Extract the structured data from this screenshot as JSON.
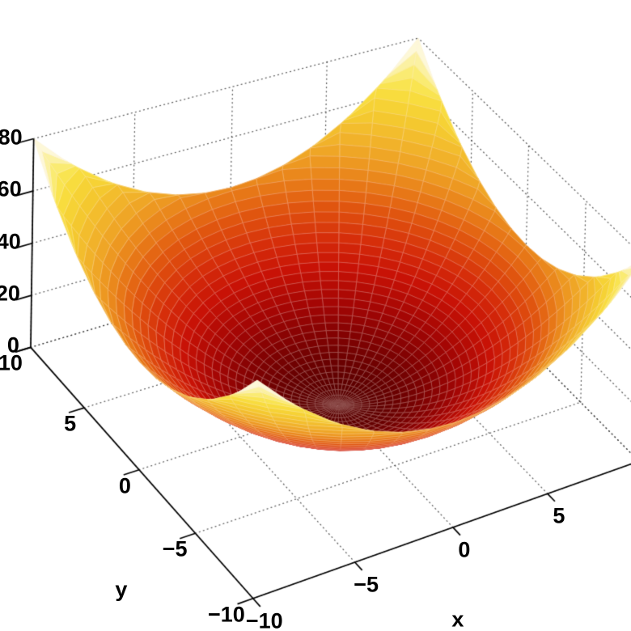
{
  "chart_data": {
    "type": "surface",
    "title": "",
    "function": "z = 0.4*(x^2 + y^2)",
    "coefficient": 0.4,
    "grid_type": "polar",
    "r_max": 14.142,
    "rings": 40,
    "sectors": 48,
    "xlabel": "x",
    "ylabel": "y",
    "xlim": [
      -10,
      10
    ],
    "ylim": [
      -10,
      10
    ],
    "zlim": [
      0,
      80
    ],
    "x_ticks": [
      {
        "value": -10,
        "label": "−10"
      },
      {
        "value": -5,
        "label": "−5"
      },
      {
        "value": 0,
        "label": "0"
      },
      {
        "value": 5,
        "label": "5"
      },
      {
        "value": 10,
        "label": ""
      }
    ],
    "y_ticks": [
      {
        "value": 10,
        "label": "10"
      },
      {
        "value": 5,
        "label": "5"
      },
      {
        "value": 0,
        "label": "0"
      },
      {
        "value": -5,
        "label": "−5"
      },
      {
        "value": -10,
        "label": "−10"
      }
    ],
    "z_ticks": [
      {
        "value": 0,
        "label": "0"
      },
      {
        "value": 20,
        "label": "20"
      },
      {
        "value": 40,
        "label": "40"
      },
      {
        "value": 60,
        "label": "60"
      },
      {
        "value": 80,
        "label": "80"
      }
    ],
    "grid": true,
    "grid_style": "dotted",
    "view": "3d perspective, azimuth ~-37.5 deg, elevation ~30 deg",
    "colormap_name": "hot (dark red to white)",
    "colormap": [
      [
        0.0,
        "#570000"
      ],
      [
        0.08,
        "#7e0202"
      ],
      [
        0.16,
        "#a50604"
      ],
      [
        0.25,
        "#c81206"
      ],
      [
        0.33,
        "#d62e0a"
      ],
      [
        0.42,
        "#e0540f"
      ],
      [
        0.5,
        "#e87c18"
      ],
      [
        0.58,
        "#eea024"
      ],
      [
        0.66,
        "#f2b82c"
      ],
      [
        0.74,
        "#f5cd30"
      ],
      [
        0.82,
        "#f8de40"
      ],
      [
        0.88,
        "#f9e85c"
      ],
      [
        0.94,
        "#fbf096"
      ],
      [
        1.0,
        "#fdf8d8"
      ]
    ]
  },
  "colors": {
    "background": "#ffffff",
    "axis": "#000000",
    "grid_dots": "rgba(40,40,40,0.75)",
    "surface_edge": "rgba(255,238,230,0.55)",
    "label": "#000000"
  }
}
